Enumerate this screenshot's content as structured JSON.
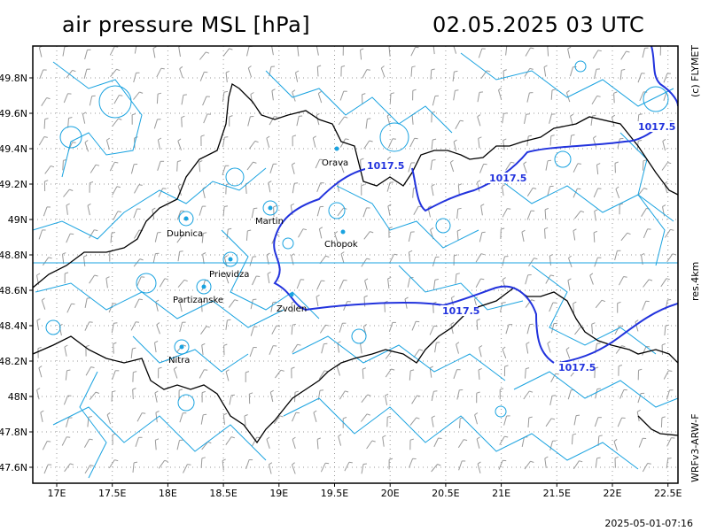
{
  "header": {
    "title": "air pressure MSL [hPa]",
    "datetime": "02.05.2025   03 UTC"
  },
  "side_labels": {
    "copyright": "(c) FLYMET",
    "resolution": "res.4km",
    "model": "WRFv3-ARW-F"
  },
  "footer": {
    "timestamp": "2025-05-01-07:16"
  },
  "axes": {
    "lat_labels": [
      "49.8N",
      "49.6N",
      "49.4N",
      "49.2N",
      "49N",
      "48.8N",
      "48.6N",
      "48.4N",
      "48.2N",
      "48N",
      "47.8N",
      "47.6N"
    ],
    "lon_labels": [
      "17E",
      "17.5E",
      "18E",
      "18.5E",
      "19E",
      "19.5E",
      "20E",
      "20.5E",
      "21E",
      "21.5E",
      "22E",
      "22.5E"
    ]
  },
  "cities": [
    {
      "name": "Orava"
    },
    {
      "name": "Martin"
    },
    {
      "name": "Dubnica"
    },
    {
      "name": "Chopok"
    },
    {
      "name": "Prievidza"
    },
    {
      "name": "Partizanske"
    },
    {
      "name": "Zvolen"
    },
    {
      "name": "Nitra"
    }
  ],
  "isobars": [
    {
      "label": "1017.5"
    },
    {
      "label": "1017.5"
    },
    {
      "label": "1017.5"
    },
    {
      "label": "1017.5"
    },
    {
      "label": "1017.5"
    }
  ],
  "colors": {
    "isobar": "#2233dd",
    "terrain": "#1aa3e0",
    "wind_barbs": "#9a9a9a",
    "border": "#000000",
    "grid": "#9a9a9a"
  }
}
